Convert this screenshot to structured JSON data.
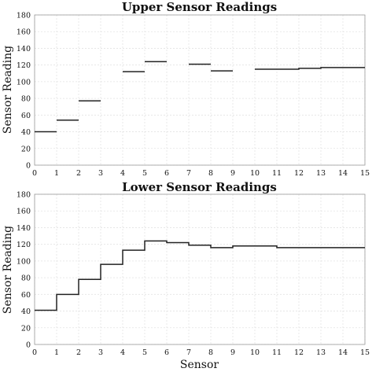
{
  "chart_data": [
    {
      "type": "line",
      "style": "step",
      "title": "Upper Sensor Readings",
      "xlabel": "",
      "ylabel": "Sensor Reading",
      "xlim": [
        0,
        15
      ],
      "ylim": [
        0,
        180
      ],
      "xticks": [
        "0",
        "1",
        "2",
        "3",
        "4",
        "5",
        "6",
        "7",
        "8",
        "9",
        "10",
        "11",
        "12",
        "13",
        "14",
        "15"
      ],
      "yticks": [
        "0",
        "20",
        "40",
        "60",
        "80",
        "100",
        "120",
        "140",
        "160",
        "180"
      ],
      "grid": true,
      "segments": [
        {
          "x0": 0,
          "x1": 1,
          "values": [
            40
          ]
        },
        {
          "x0": 1,
          "x1": 2,
          "values": [
            54
          ]
        },
        {
          "x0": 2,
          "x1": 3,
          "values": [
            77
          ]
        },
        {
          "x0": 4,
          "x1": 5,
          "values": [
            112
          ]
        },
        {
          "x0": 5,
          "x1": 6,
          "values": [
            124
          ]
        },
        {
          "x0": 7,
          "x1": 8,
          "values": [
            121
          ]
        },
        {
          "x0": 8,
          "x1": 9,
          "values": [
            113
          ]
        },
        {
          "x0": 10,
          "x1": 15,
          "values": [
            115,
            115,
            116,
            117,
            117
          ]
        }
      ]
    },
    {
      "type": "line",
      "style": "step",
      "title": "Lower Sensor Readings",
      "xlabel": "Sensor",
      "ylabel": "Sensor Reading",
      "xlim": [
        0,
        15
      ],
      "ylim": [
        0,
        180
      ],
      "xticks": [
        "0",
        "1",
        "2",
        "3",
        "4",
        "5",
        "6",
        "7",
        "8",
        "9",
        "10",
        "11",
        "12",
        "13",
        "14",
        "15"
      ],
      "yticks": [
        "0",
        "20",
        "40",
        "60",
        "80",
        "100",
        "120",
        "140",
        "160",
        "180"
      ],
      "grid": true,
      "segments": [
        {
          "x0": 0,
          "x1": 15,
          "values": [
            41,
            60,
            78,
            96,
            113,
            124,
            122,
            119,
            116,
            118,
            118,
            116,
            116,
            116,
            116
          ]
        }
      ]
    }
  ]
}
